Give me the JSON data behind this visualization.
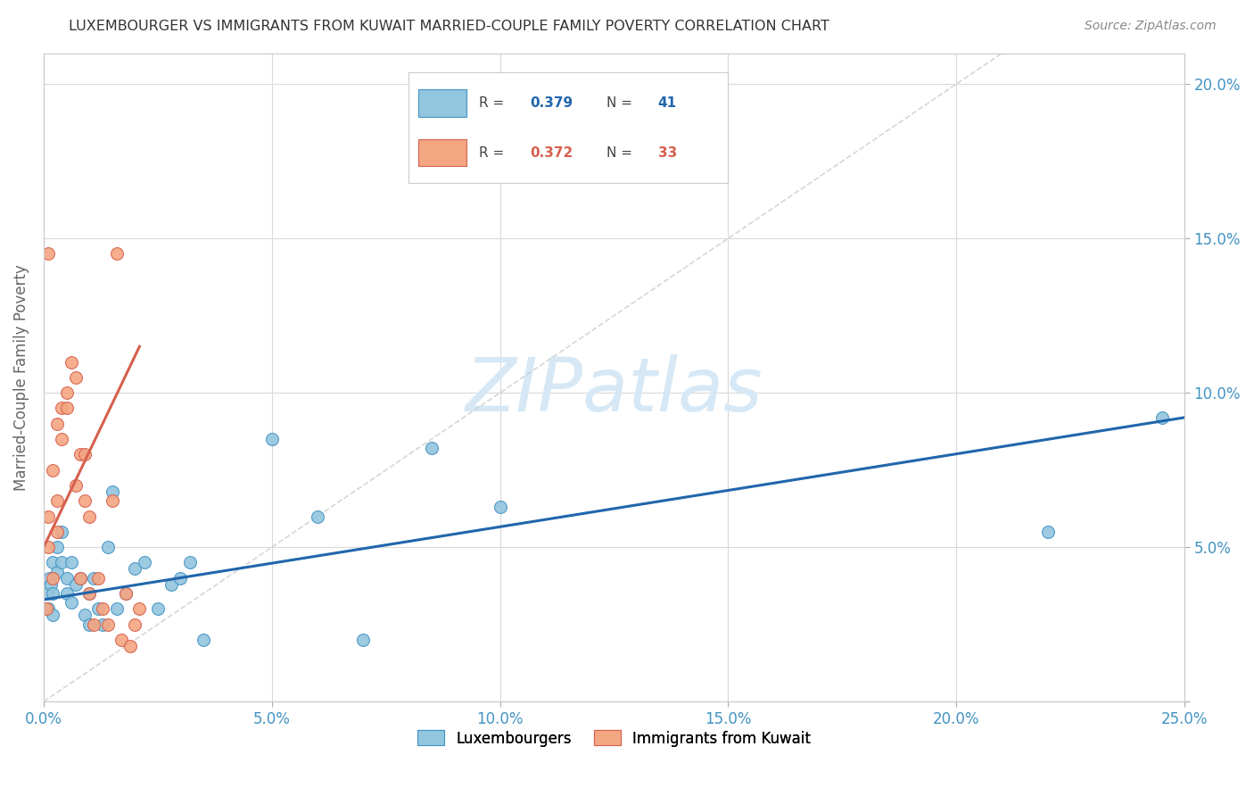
{
  "title": "LUXEMBOURGER VS IMMIGRANTS FROM KUWAIT MARRIED-COUPLE FAMILY POVERTY CORRELATION CHART",
  "source": "Source: ZipAtlas.com",
  "ylabel": "Married-Couple Family Poverty",
  "xlim": [
    0.0,
    0.25
  ],
  "ylim": [
    0.0,
    0.21
  ],
  "xticks": [
    0.0,
    0.05,
    0.1,
    0.15,
    0.2,
    0.25
  ],
  "yticks": [
    0.0,
    0.05,
    0.1,
    0.15,
    0.2
  ],
  "xtick_labels": [
    "0.0%",
    "5.0%",
    "10.0%",
    "15.0%",
    "20.0%",
    "25.0%"
  ],
  "ytick_labels_right": [
    "",
    "5.0%",
    "10.0%",
    "15.0%",
    "20.0%"
  ],
  "legend_blue_r": "0.379",
  "legend_blue_n": "41",
  "legend_pink_r": "0.372",
  "legend_pink_n": "33",
  "blue_scatter_x": [
    0.0008,
    0.001,
    0.0012,
    0.0015,
    0.002,
    0.002,
    0.002,
    0.003,
    0.003,
    0.004,
    0.004,
    0.005,
    0.005,
    0.006,
    0.006,
    0.007,
    0.008,
    0.009,
    0.01,
    0.01,
    0.011,
    0.012,
    0.013,
    0.014,
    0.015,
    0.016,
    0.018,
    0.02,
    0.022,
    0.025,
    0.028,
    0.03,
    0.032,
    0.035,
    0.05,
    0.06,
    0.07,
    0.085,
    0.1,
    0.22,
    0.245
  ],
  "blue_scatter_y": [
    0.035,
    0.03,
    0.04,
    0.038,
    0.045,
    0.035,
    0.028,
    0.05,
    0.042,
    0.055,
    0.045,
    0.04,
    0.035,
    0.045,
    0.032,
    0.038,
    0.04,
    0.028,
    0.035,
    0.025,
    0.04,
    0.03,
    0.025,
    0.05,
    0.068,
    0.03,
    0.035,
    0.043,
    0.045,
    0.03,
    0.038,
    0.04,
    0.045,
    0.02,
    0.085,
    0.06,
    0.02,
    0.082,
    0.063,
    0.055,
    0.092
  ],
  "pink_scatter_x": [
    0.0005,
    0.001,
    0.001,
    0.001,
    0.002,
    0.002,
    0.003,
    0.003,
    0.003,
    0.004,
    0.004,
    0.005,
    0.005,
    0.006,
    0.007,
    0.007,
    0.008,
    0.008,
    0.009,
    0.009,
    0.01,
    0.01,
    0.011,
    0.012,
    0.013,
    0.014,
    0.015,
    0.016,
    0.017,
    0.018,
    0.019,
    0.02,
    0.021
  ],
  "pink_scatter_y": [
    0.03,
    0.145,
    0.06,
    0.05,
    0.075,
    0.04,
    0.065,
    0.055,
    0.09,
    0.095,
    0.085,
    0.1,
    0.095,
    0.11,
    0.105,
    0.07,
    0.04,
    0.08,
    0.065,
    0.08,
    0.06,
    0.035,
    0.025,
    0.04,
    0.03,
    0.025,
    0.065,
    0.145,
    0.02,
    0.035,
    0.018,
    0.025,
    0.03
  ],
  "blue_line_x": [
    0.0,
    0.25
  ],
  "blue_line_y": [
    0.033,
    0.092
  ],
  "pink_line_x": [
    0.0,
    0.021
  ],
  "pink_line_y": [
    0.05,
    0.115
  ],
  "diag_line_x": [
    0.0,
    0.21
  ],
  "diag_line_y": [
    0.0,
    0.21
  ],
  "blue_scatter_color": "#92c5de",
  "blue_edge_color": "#4393c3",
  "blue_line_color": "#2166ac",
  "pink_scatter_color": "#f4a582",
  "pink_edge_color": "#d6604d",
  "pink_line_color": "#d6604d",
  "diag_line_color": "#cccccc",
  "watermark_color": "#d6e8f5",
  "background_color": "#ffffff",
  "grid_color": "#d9d9d9"
}
